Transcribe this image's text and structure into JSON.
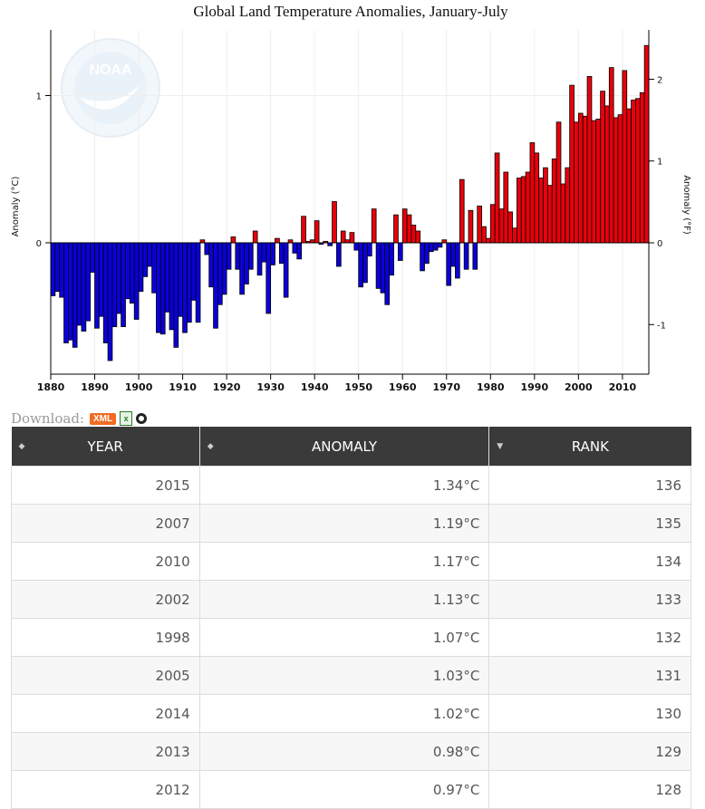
{
  "chart_data": {
    "type": "bar",
    "title": "Global Land Temperature Anomalies, January-July",
    "ylabel_left": "Anomaly (°C)",
    "ylabel_right": "Anomaly (°F)",
    "x_ticks": [
      "1880",
      "1890",
      "1900",
      "1910",
      "1920",
      "1930",
      "1940",
      "1950",
      "1960",
      "1970",
      "1980",
      "1990",
      "2000",
      "2010"
    ],
    "y_left_ticks": [
      "0",
      "1"
    ],
    "y_right_ticks": [
      "-1",
      "0",
      "1",
      "2"
    ],
    "ylim_c": [
      -0.9,
      1.45
    ],
    "positive_color": "#e8000b",
    "negative_color": "#0b00d8",
    "watermark": "NOAA",
    "years": [
      1880,
      1881,
      1882,
      1883,
      1884,
      1885,
      1886,
      1887,
      1888,
      1889,
      1890,
      1891,
      1892,
      1893,
      1894,
      1895,
      1896,
      1897,
      1898,
      1899,
      1900,
      1901,
      1902,
      1903,
      1904,
      1905,
      1906,
      1907,
      1908,
      1909,
      1910,
      1911,
      1912,
      1913,
      1914,
      1915,
      1916,
      1917,
      1918,
      1919,
      1920,
      1921,
      1922,
      1923,
      1924,
      1925,
      1926,
      1927,
      1928,
      1929,
      1930,
      1931,
      1932,
      1933,
      1934,
      1935,
      1936,
      1937,
      1938,
      1939,
      1940,
      1941,
      1942,
      1943,
      1944,
      1945,
      1946,
      1947,
      1948,
      1949,
      1950,
      1951,
      1952,
      1953,
      1954,
      1955,
      1956,
      1957,
      1958,
      1959,
      1960,
      1961,
      1962,
      1963,
      1964,
      1965,
      1966,
      1967,
      1968,
      1969,
      1970,
      1971,
      1972,
      1973,
      1974,
      1975,
      1976,
      1977,
      1978,
      1979,
      1980,
      1981,
      1982,
      1983,
      1984,
      1985,
      1986,
      1987,
      1988,
      1989,
      1990,
      1991,
      1992,
      1993,
      1994,
      1995,
      1996,
      1997,
      1998,
      1999,
      2000,
      2001,
      2002,
      2003,
      2004,
      2005,
      2006,
      2007,
      2008,
      2009,
      2010,
      2011,
      2012,
      2013,
      2014,
      2015
    ],
    "values": [
      -0.36,
      -0.33,
      -0.37,
      -0.68,
      -0.66,
      -0.71,
      -0.56,
      -0.6,
      -0.53,
      -0.2,
      -0.58,
      -0.5,
      -0.68,
      -0.8,
      -0.57,
      -0.48,
      -0.57,
      -0.38,
      -0.41,
      -0.52,
      -0.33,
      -0.23,
      -0.16,
      -0.34,
      -0.61,
      -0.62,
      -0.47,
      -0.59,
      -0.71,
      -0.5,
      -0.61,
      -0.54,
      -0.39,
      -0.54,
      0.02,
      -0.08,
      -0.3,
      -0.58,
      -0.42,
      -0.35,
      -0.18,
      0.04,
      -0.18,
      -0.35,
      -0.28,
      -0.18,
      0.08,
      -0.22,
      -0.13,
      -0.48,
      -0.15,
      0.03,
      -0.14,
      -0.37,
      0.02,
      -0.07,
      -0.11,
      0.18,
      0.01,
      0.02,
      0.15,
      -0.01,
      0.01,
      -0.02,
      0.28,
      -0.16,
      0.08,
      0.02,
      0.07,
      -0.05,
      -0.3,
      -0.27,
      -0.09,
      0.23,
      -0.31,
      -0.34,
      -0.42,
      -0.22,
      0.19,
      -0.12,
      0.23,
      0.19,
      0.12,
      0.08,
      -0.19,
      -0.14,
      -0.06,
      -0.05,
      -0.03,
      0.02,
      -0.29,
      -0.16,
      -0.24,
      0.43,
      -0.18,
      0.22,
      -0.18,
      0.25,
      0.11,
      0.03,
      0.26,
      0.61,
      0.23,
      0.48,
      0.21,
      0.1,
      0.44,
      0.45,
      0.48,
      0.68,
      0.61,
      0.44,
      0.51,
      0.39,
      0.57,
      0.82,
      0.4,
      0.51,
      1.07,
      0.82,
      0.88,
      0.86,
      1.13,
      0.83,
      0.84,
      1.03,
      0.93,
      1.19,
      0.85,
      0.87,
      1.17,
      0.91,
      0.97,
      0.98,
      1.02,
      1.34
    ]
  },
  "download": {
    "label": "Download:",
    "xml": "XML"
  },
  "table": {
    "headers": [
      "YEAR",
      "ANOMALY",
      "RANK"
    ],
    "rows": [
      {
        "year": "2015",
        "anomaly": "1.34°C",
        "rank": "136"
      },
      {
        "year": "2007",
        "anomaly": "1.19°C",
        "rank": "135"
      },
      {
        "year": "2010",
        "anomaly": "1.17°C",
        "rank": "134"
      },
      {
        "year": "2002",
        "anomaly": "1.13°C",
        "rank": "133"
      },
      {
        "year": "1998",
        "anomaly": "1.07°C",
        "rank": "132"
      },
      {
        "year": "2005",
        "anomaly": "1.03°C",
        "rank": "131"
      },
      {
        "year": "2014",
        "anomaly": "1.02°C",
        "rank": "130"
      },
      {
        "year": "2013",
        "anomaly": "0.98°C",
        "rank": "129"
      },
      {
        "year": "2012",
        "anomaly": "0.97°C",
        "rank": "128"
      }
    ]
  }
}
